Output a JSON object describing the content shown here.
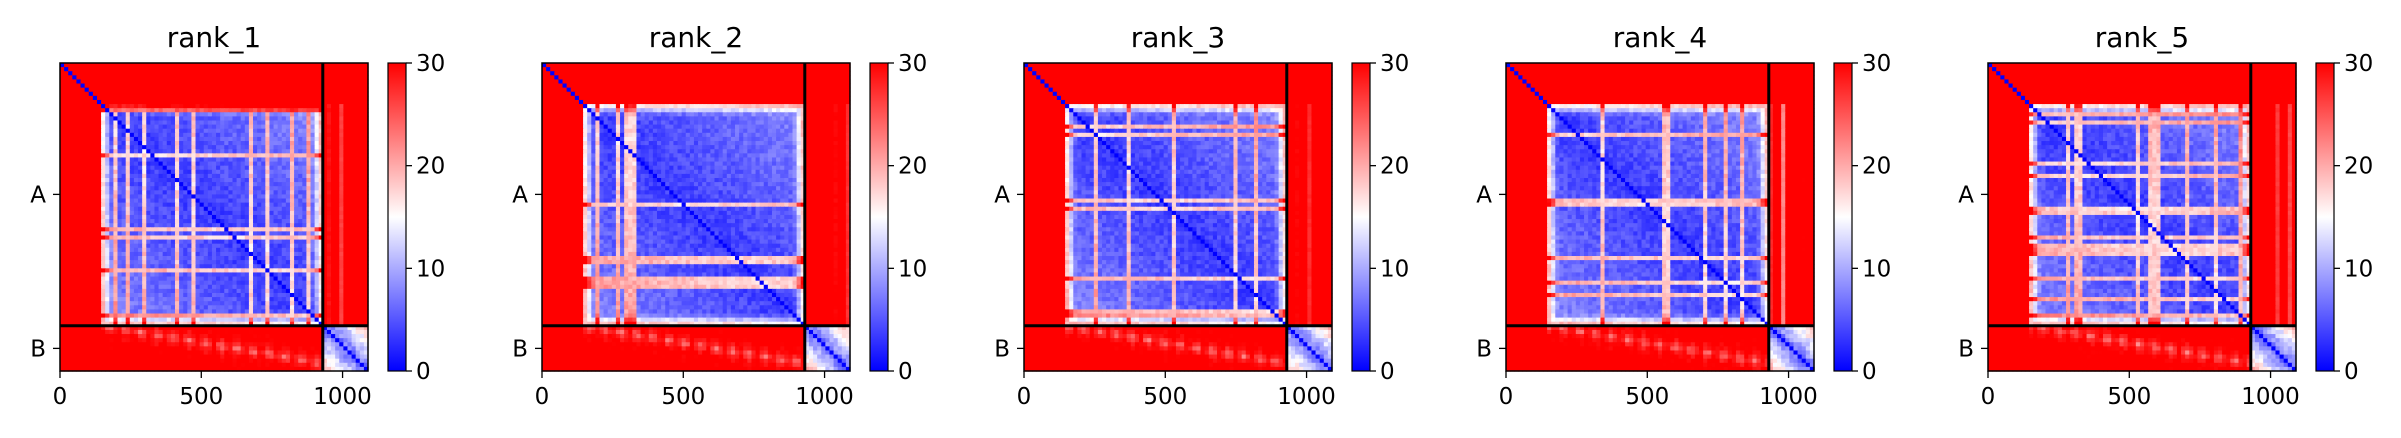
{
  "figure": {
    "colors": {
      "low": "#0000ff",
      "mid": "#ffffff",
      "high": "#ff0000",
      "divider": "#000000"
    },
    "colormap": "bwr"
  },
  "chart_data": [
    {
      "type": "heatmap",
      "title": "rank_1",
      "xlabel": "",
      "ylabel": "",
      "x_ticks": [
        0,
        500,
        1000
      ],
      "x_tick_labels": [
        "0",
        "500",
        "1000"
      ],
      "xlim": [
        0,
        1090
      ],
      "ylim": [
        0,
        1090
      ],
      "y_tick_labels": [
        "A",
        "B"
      ],
      "chain_boundary": 930,
      "chains": [
        {
          "name": "A",
          "start": 0,
          "end": 930
        },
        {
          "name": "B",
          "start": 930,
          "end": 1090
        }
      ],
      "disordered_region": [
        0,
        145
      ],
      "colorbar": {
        "min": 0,
        "max": 30,
        "ticks": [
          0,
          10,
          20,
          30
        ],
        "tick_labels": [
          "0",
          "10",
          "20",
          "30"
        ]
      },
      "variant": 1
    },
    {
      "type": "heatmap",
      "title": "rank_2",
      "xlabel": "",
      "ylabel": "",
      "x_ticks": [
        0,
        500,
        1000
      ],
      "x_tick_labels": [
        "0",
        "500",
        "1000"
      ],
      "xlim": [
        0,
        1090
      ],
      "ylim": [
        0,
        1090
      ],
      "y_tick_labels": [
        "A",
        "B"
      ],
      "chain_boundary": 930,
      "chains": [
        {
          "name": "A",
          "start": 0,
          "end": 930
        },
        {
          "name": "B",
          "start": 930,
          "end": 1090
        }
      ],
      "disordered_region": [
        0,
        145
      ],
      "colorbar": {
        "min": 0,
        "max": 30,
        "ticks": [
          0,
          10,
          20,
          30
        ],
        "tick_labels": [
          "0",
          "10",
          "20",
          "30"
        ]
      },
      "variant": 2
    },
    {
      "type": "heatmap",
      "title": "rank_3",
      "xlabel": "",
      "ylabel": "",
      "x_ticks": [
        0,
        500,
        1000
      ],
      "x_tick_labels": [
        "0",
        "500",
        "1000"
      ],
      "xlim": [
        0,
        1090
      ],
      "ylim": [
        0,
        1090
      ],
      "y_tick_labels": [
        "A",
        "B"
      ],
      "chain_boundary": 930,
      "chains": [
        {
          "name": "A",
          "start": 0,
          "end": 930
        },
        {
          "name": "B",
          "start": 930,
          "end": 1090
        }
      ],
      "disordered_region": [
        0,
        145
      ],
      "colorbar": {
        "min": 0,
        "max": 30,
        "ticks": [
          0,
          10,
          20,
          30
        ],
        "tick_labels": [
          "0",
          "10",
          "20",
          "30"
        ]
      },
      "variant": 3
    },
    {
      "type": "heatmap",
      "title": "rank_4",
      "xlabel": "",
      "ylabel": "",
      "x_ticks": [
        0,
        500,
        1000
      ],
      "x_tick_labels": [
        "0",
        "500",
        "1000"
      ],
      "xlim": [
        0,
        1090
      ],
      "ylim": [
        0,
        1090
      ],
      "y_tick_labels": [
        "A",
        "B"
      ],
      "chain_boundary": 930,
      "chains": [
        {
          "name": "A",
          "start": 0,
          "end": 930
        },
        {
          "name": "B",
          "start": 930,
          "end": 1090
        }
      ],
      "disordered_region": [
        0,
        145
      ],
      "colorbar": {
        "min": 0,
        "max": 30,
        "ticks": [
          0,
          10,
          20,
          30
        ],
        "tick_labels": [
          "0",
          "10",
          "20",
          "30"
        ]
      },
      "variant": 4
    },
    {
      "type": "heatmap",
      "title": "rank_5",
      "xlabel": "",
      "ylabel": "",
      "x_ticks": [
        0,
        500,
        1000
      ],
      "x_tick_labels": [
        "0",
        "500",
        "1000"
      ],
      "xlim": [
        0,
        1090
      ],
      "ylim": [
        0,
        1090
      ],
      "y_tick_labels": [
        "A",
        "B"
      ],
      "chain_boundary": 930,
      "chains": [
        {
          "name": "A",
          "start": 0,
          "end": 930
        },
        {
          "name": "B",
          "start": 930,
          "end": 1090
        }
      ],
      "disordered_region": [
        0,
        145
      ],
      "colorbar": {
        "min": 0,
        "max": 30,
        "ticks": [
          0,
          10,
          20,
          30
        ],
        "tick_labels": [
          "0",
          "10",
          "20",
          "30"
        ]
      },
      "variant": 5
    }
  ]
}
